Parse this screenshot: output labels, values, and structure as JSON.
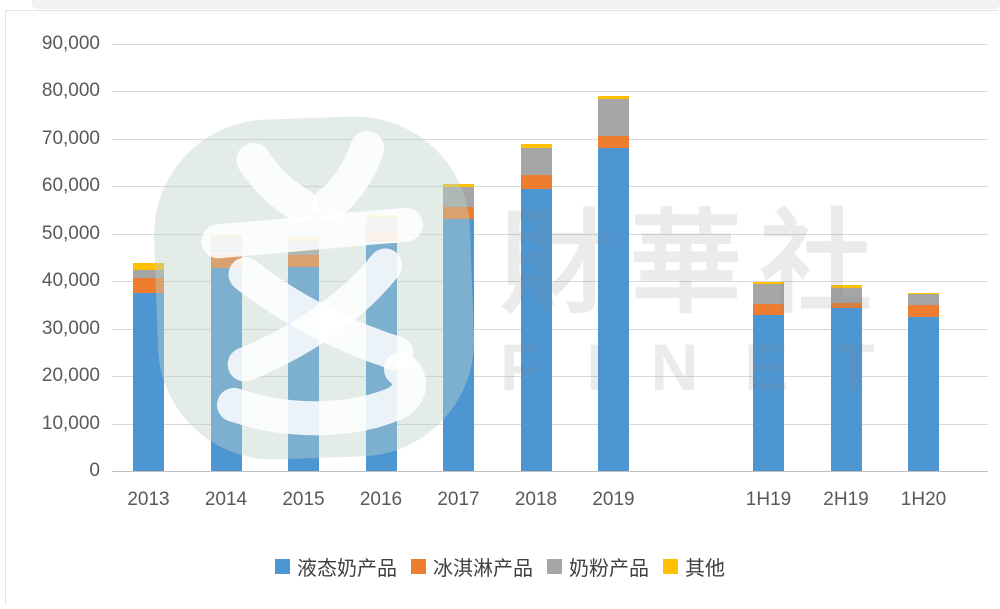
{
  "watermark": {
    "brand_cjk": "財華社",
    "brand_latin": "FINET",
    "logo_color": "#dfe9e4"
  },
  "colors": {
    "liquid": "#4e96d2",
    "ice_cream": "#ed7d31",
    "milk_powder": "#a6a6a6",
    "other": "#fec000",
    "grid": "#d9d9d9",
    "axis_text": "#595959",
    "legend_text": "#404040"
  },
  "chart_data": {
    "type": "bar",
    "stacked": true,
    "title": "",
    "xlabel": "",
    "ylabel": "",
    "grid": true,
    "legend_position": "bottom",
    "ylim": [
      0,
      90000
    ],
    "ytick_step": 10000,
    "ytick_labels": [
      "0",
      "10,000",
      "20,000",
      "30,000",
      "40,000",
      "50,000",
      "60,000",
      "70,000",
      "80,000",
      "90,000"
    ],
    "categories": [
      "2013",
      "2014",
      "2015",
      "2016",
      "2017",
      "2018",
      "2019",
      "1H19",
      "2H19",
      "1H20"
    ],
    "gap_after_index": 6,
    "series": [
      {
        "name": "液态奶产品",
        "color_key": "liquid",
        "values": [
          37500,
          42800,
          43000,
          48100,
          53000,
          59400,
          68000,
          32900,
          34400,
          32500
        ]
      },
      {
        "name": "冰淇淋产品",
        "color_key": "ice_cream",
        "values": [
          3100,
          3000,
          2500,
          2200,
          2600,
          3000,
          2500,
          2300,
          1000,
          2400
        ]
      },
      {
        "name": "奶粉产品",
        "color_key": "milk_powder",
        "values": [
          1800,
          3700,
          3000,
          3000,
          4100,
          5600,
          7800,
          4100,
          3200,
          2300
        ]
      },
      {
        "name": "其他",
        "color_key": "other",
        "values": [
          1300,
          500,
          700,
          700,
          800,
          900,
          700,
          600,
          500,
          300
        ]
      }
    ],
    "totals": [
      43700,
      50000,
      49200,
      54000,
      60500,
      68900,
      79000,
      39900,
      39100,
      37500
    ]
  }
}
